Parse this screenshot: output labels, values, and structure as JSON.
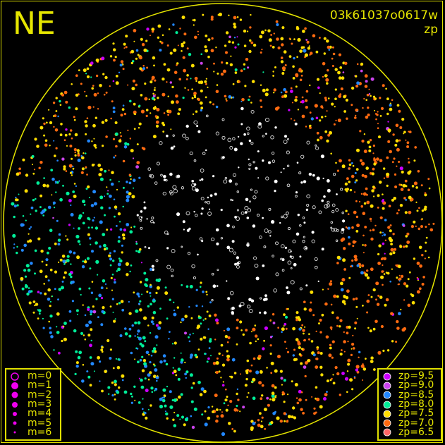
{
  "header": {
    "direction": "NE",
    "frame_id": "03k61037o0617w",
    "mode": "zp"
  },
  "chart_data": {
    "type": "scatter",
    "title": "03k61037o0617w",
    "subtitle": "zp",
    "projection": "all-sky fisheye circle",
    "grid": false,
    "circle_color": "#e6e600",
    "saturated_marker": "white open/filled circles and asterisks",
    "legend_size": {
      "placement": "bottom-left",
      "entries": [
        {
          "label": "m=0",
          "style": "open-circle"
        },
        {
          "label": "m=1",
          "style": "filled"
        },
        {
          "label": "m=2",
          "style": "filled"
        },
        {
          "label": "m=3",
          "style": "filled"
        },
        {
          "label": "m=4",
          "style": "filled"
        },
        {
          "label": "m=5",
          "style": "filled"
        },
        {
          "label": "m=6",
          "style": "filled"
        }
      ],
      "color": "#ee00ee"
    },
    "legend_zp": {
      "placement": "bottom-right",
      "entries": [
        {
          "label": "zp=9.5",
          "value": 9.5,
          "color": "#cc00ff"
        },
        {
          "label": "zp=9.0",
          "value": 9.0,
          "color": "#cc44ee"
        },
        {
          "label": "zp=8.5",
          "value": 8.5,
          "color": "#2288ff"
        },
        {
          "label": "zp=8.0",
          "value": 8.0,
          "color": "#00ee99"
        },
        {
          "label": "zp=7.5",
          "value": 7.5,
          "color": "#ffdd00"
        },
        {
          "label": "zp=7.0",
          "value": 7.0,
          "color": "#ff6a10"
        },
        {
          "label": "zp=6.5",
          "value": 6.5,
          "color": "#ff6666"
        }
      ]
    }
  }
}
